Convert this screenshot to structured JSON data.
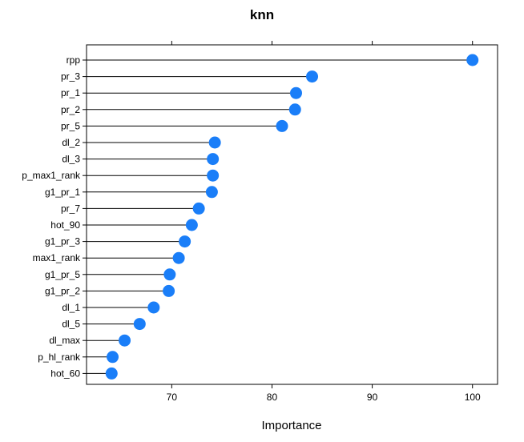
{
  "chart_data": {
    "type": "scatter",
    "title": "knn",
    "xlabel": "Importance",
    "ylabel": "",
    "xlim": [
      61.5,
      102.5
    ],
    "xticks": [
      70,
      80,
      90,
      100
    ],
    "xtick_labels": [
      "70",
      "80",
      "90",
      "100"
    ],
    "grid": false,
    "marker_color": "#1a7ef8",
    "line_color": "#000000",
    "categories": [
      "rpp",
      "pr_3",
      "pr_1",
      "pr_2",
      "pr_5",
      "dl_2",
      "dl_3",
      "p_max1_rank",
      "g1_pr_1",
      "pr_7",
      "hot_90",
      "g1_pr_3",
      "max1_rank",
      "g1_pr_5",
      "g1_pr_2",
      "dl_1",
      "dl_5",
      "dl_max",
      "p_hl_rank",
      "hot_60"
    ],
    "values": [
      100,
      84,
      82.4,
      82.3,
      81,
      74.3,
      74.1,
      74.1,
      74,
      72.7,
      72,
      71.3,
      70.7,
      69.8,
      69.7,
      68.2,
      66.8,
      65.3,
      64.1,
      64
    ]
  }
}
